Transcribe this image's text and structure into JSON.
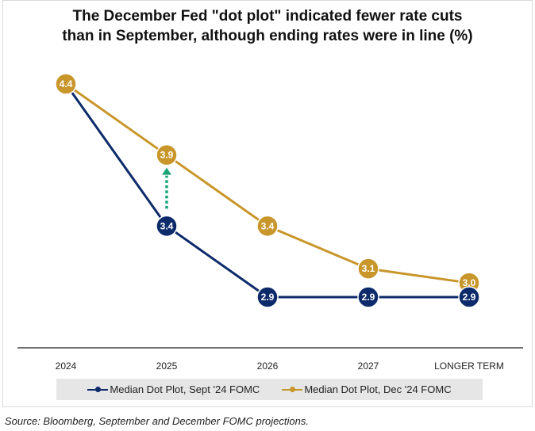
{
  "chart_data": {
    "type": "line",
    "title_lines": [
      "The December Fed \"dot plot\" indicated fewer rate cuts",
      "than in September, although ending rates were in line (%)"
    ],
    "categories": [
      "2024",
      "2025",
      "2026",
      "2027",
      "LONGER TERM"
    ],
    "series": [
      {
        "name": "Median Dot Plot, Sept '24 FOMC",
        "color": "#0d2a6b",
        "values": [
          4.4,
          3.4,
          2.9,
          2.9,
          2.9
        ],
        "labels": [
          "",
          "3.4",
          "2.9",
          "2.9",
          "2.9"
        ]
      },
      {
        "name": "Median Dot Plot, Dec '24 FOMC",
        "color": "#c8962a",
        "values": [
          4.4,
          3.9,
          3.4,
          3.1,
          3.0
        ],
        "labels": [
          "4.4",
          "3.9",
          "3.4",
          "3.1",
          "3.0"
        ]
      }
    ],
    "annotation": {
      "type": "arrow",
      "category": "2025",
      "from": 3.4,
      "to": 3.9,
      "color": "#1aa37a"
    },
    "ylim": [
      2.2,
      4.55
    ],
    "grid": false,
    "legend_position": "bottom"
  },
  "source": "Source: Bloomberg, September and December FOMC projections."
}
